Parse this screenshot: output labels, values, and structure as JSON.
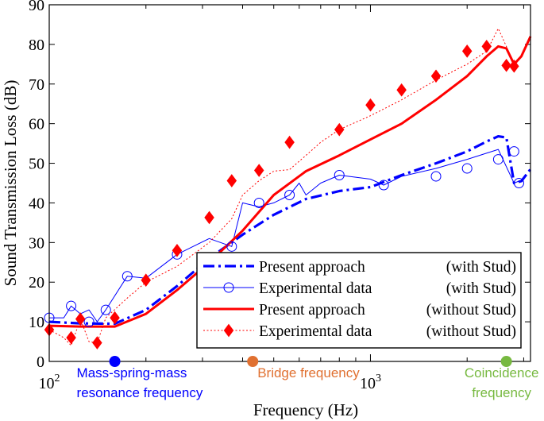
{
  "chart_data": {
    "type": "line",
    "title": "",
    "xlabel": "Frequency (Hz)",
    "ylabel": "Sound Transmission Loss (dB)",
    "xscale": "log",
    "xlim": [
      100,
      3150
    ],
    "ylim": [
      0,
      90
    ],
    "yticks": [
      0,
      10,
      20,
      30,
      40,
      50,
      60,
      70,
      80,
      90
    ],
    "xticks": [
      {
        "value": 100,
        "base": "10",
        "exp": "2"
      },
      {
        "value": 1000,
        "base": "10",
        "exp": "3"
      }
    ],
    "legend_position": "bottom-right",
    "series": [
      {
        "name": "Present approach (with Stud)",
        "label_main": "Present approach",
        "label_tail": "(with  Stud)",
        "color": "#0000ff",
        "style": "dashdot",
        "marker": "none",
        "x": [
          100,
          125,
          160,
          200,
          250,
          315,
          400,
          500,
          630,
          800,
          1000,
          1250,
          1600,
          2000,
          2300,
          2500,
          2650,
          2800,
          2950,
          3150
        ],
        "y": [
          10,
          9.6,
          9.5,
          13,
          19,
          26,
          32,
          37,
          41,
          43,
          44,
          47,
          50,
          53,
          55.5,
          56.8,
          56.5,
          45,
          45.5,
          48.5
        ]
      },
      {
        "name": "Experimental data (with Stud)",
        "label_main": "Experimental data",
        "label_tail": "(with  Stud)",
        "color": "#0000ff",
        "style": "solid-thin",
        "marker": "circle",
        "x": [
          100,
          111,
          117,
          125,
          133,
          141,
          150,
          175,
          200,
          250,
          315,
          370,
          400,
          450,
          500,
          560,
          600,
          630,
          700,
          800,
          1000,
          1100,
          1250,
          1600,
          2000,
          2500,
          2800,
          2900
        ],
        "y": [
          11,
          11,
          14,
          12,
          13,
          10,
          13,
          21.5,
          21,
          27,
          31,
          29,
          40,
          39,
          40,
          42,
          45,
          42,
          45,
          47,
          46,
          44.5,
          46.7,
          48.7,
          51,
          53.5,
          45,
          45.5
        ],
        "markers_x": [
          100,
          117,
          133,
          150,
          175,
          250,
          370,
          450,
          560,
          800,
          1100,
          1600,
          2000,
          2500,
          2800,
          2900
        ],
        "markers_y": [
          11,
          14,
          10,
          13,
          21.5,
          27,
          29,
          40,
          42,
          47,
          44.5,
          46.7,
          48.7,
          51,
          53,
          45
        ]
      },
      {
        "name": "Present approach (without Stud)",
        "label_main": "Present approach",
        "label_tail": "(without Stud)",
        "color": "#ff0000",
        "style": "solid-thick",
        "marker": "none",
        "x": [
          100,
          125,
          160,
          200,
          250,
          315,
          400,
          500,
          630,
          800,
          1000,
          1250,
          1600,
          2000,
          2300,
          2500,
          2650,
          2800,
          2950,
          3150
        ],
        "y": [
          9,
          8.8,
          8.8,
          12,
          18,
          25,
          33,
          42,
          48,
          52,
          56,
          60,
          66,
          72,
          77,
          79.5,
          79,
          75,
          77,
          82
        ]
      },
      {
        "name": "Experimental data (without Stud)",
        "label_main": "Experimental data",
        "label_tail": "(without Stud)",
        "color": "#ff0000",
        "style": "dotted",
        "marker": "diamond",
        "x": [
          100,
          111,
          117,
          125,
          133,
          141,
          150,
          175,
          200,
          250,
          315,
          370,
          400,
          450,
          500,
          560,
          630,
          700,
          800,
          1000,
          1250,
          1600,
          2000,
          2300,
          2500,
          2650,
          2800,
          2950,
          3150
        ],
        "y": [
          8,
          6,
          4,
          10.7,
          5,
          4.7,
          11,
          16,
          20,
          24,
          30,
          36,
          42,
          45.6,
          48,
          48.4,
          52,
          55.3,
          58.5,
          62,
          66,
          71,
          75,
          78.3,
          84,
          79.5,
          75,
          77,
          82
        ],
        "markers_x": [
          100,
          117,
          125,
          141,
          160,
          200,
          250,
          315,
          370,
          450,
          560,
          800,
          1000,
          1250,
          1600,
          2000,
          2300,
          2650,
          2800
        ],
        "markers_y": [
          8,
          6,
          10.7,
          4.7,
          11,
          20.5,
          28,
          36.3,
          45.6,
          48.2,
          55.3,
          58.5,
          64.7,
          68.5,
          72,
          78.3,
          79.5,
          74.7,
          74.5
        ]
      }
    ],
    "annotations": [
      {
        "name": "mass-spring-mass",
        "x": 160,
        "color": "#0000ff",
        "line1": "Mass-spring-mass",
        "line2": "resonance frequency"
      },
      {
        "name": "bridge",
        "x": 430,
        "color": "#e07030",
        "line1": "Bridge frequency",
        "line2": ""
      },
      {
        "name": "coincidence",
        "x": 2650,
        "color": "#77b940",
        "line1": "Coincidence",
        "line2": "frequency"
      }
    ]
  }
}
